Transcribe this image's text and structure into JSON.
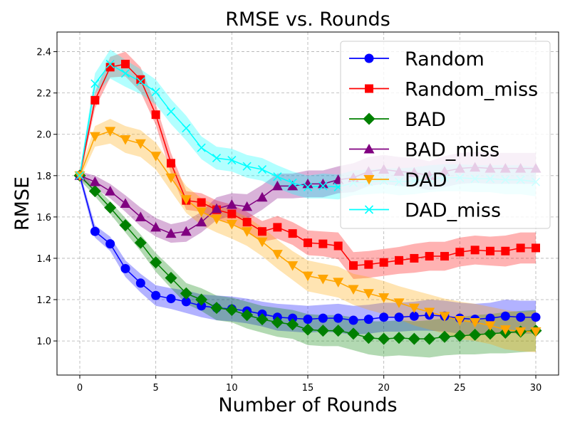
{
  "chart_data": {
    "type": "line",
    "title": "RMSE vs. Rounds",
    "xlabel": "Number of Rounds",
    "ylabel": "RMSE",
    "xlim": [
      -1.5,
      31.5
    ],
    "ylim": [
      0.835,
      2.495
    ],
    "x_ticks": [
      0,
      5,
      10,
      15,
      20,
      25,
      30
    ],
    "y_ticks": [
      1.0,
      1.2,
      1.4,
      1.6,
      1.8,
      2.0,
      2.2,
      2.4
    ],
    "grid": true,
    "legend_position": "top-right",
    "x": [
      0,
      1,
      2,
      3,
      4,
      5,
      6,
      7,
      8,
      9,
      10,
      11,
      12,
      13,
      14,
      15,
      16,
      17,
      18,
      19,
      20,
      21,
      22,
      23,
      24,
      25,
      26,
      27,
      28,
      29,
      30
    ],
    "series": [
      {
        "name": "Random",
        "color": "#0000ff",
        "marker": "circle",
        "values": [
          1.8,
          1.53,
          1.47,
          1.35,
          1.28,
          1.22,
          1.205,
          1.19,
          1.17,
          1.16,
          1.155,
          1.145,
          1.13,
          1.115,
          1.11,
          1.105,
          1.11,
          1.11,
          1.1,
          1.105,
          1.115,
          1.115,
          1.12,
          1.125,
          1.12,
          1.11,
          1.105,
          1.11,
          1.12,
          1.115,
          1.115
        ],
        "band": [
          0.02,
          0.03,
          0.035,
          0.04,
          0.045,
          0.05,
          0.05,
          0.055,
          0.055,
          0.06,
          0.06,
          0.06,
          0.06,
          0.065,
          0.065,
          0.065,
          0.065,
          0.07,
          0.07,
          0.07,
          0.07,
          0.07,
          0.07,
          0.075,
          0.075,
          0.075,
          0.075,
          0.075,
          0.08,
          0.08,
          0.08
        ]
      },
      {
        "name": "Random_miss",
        "color": "#ff0000",
        "marker": "square",
        "values": [
          1.8,
          2.165,
          2.325,
          2.34,
          2.265,
          2.095,
          1.86,
          1.68,
          1.67,
          1.635,
          1.615,
          1.575,
          1.53,
          1.55,
          1.52,
          1.475,
          1.47,
          1.46,
          1.365,
          1.37,
          1.38,
          1.39,
          1.4,
          1.41,
          1.41,
          1.43,
          1.44,
          1.435,
          1.435,
          1.45,
          1.45
        ],
        "band": [
          0.02,
          0.04,
          0.05,
          0.06,
          0.06,
          0.05,
          0.05,
          0.045,
          0.045,
          0.045,
          0.045,
          0.05,
          0.05,
          0.055,
          0.055,
          0.06,
          0.06,
          0.065,
          0.065,
          0.065,
          0.065,
          0.065,
          0.07,
          0.07,
          0.07,
          0.07,
          0.07,
          0.07,
          0.075,
          0.075,
          0.075
        ]
      },
      {
        "name": "BAD",
        "color": "#008000",
        "marker": "diamond",
        "values": [
          1.8,
          1.725,
          1.645,
          1.56,
          1.475,
          1.38,
          1.305,
          1.23,
          1.2,
          1.16,
          1.15,
          1.125,
          1.105,
          1.09,
          1.08,
          1.055,
          1.05,
          1.05,
          1.035,
          1.015,
          1.01,
          1.015,
          1.01,
          1.01,
          1.02,
          1.025,
          1.03,
          1.035,
          1.04,
          1.045,
          1.05
        ],
        "band": [
          0.02,
          0.025,
          0.03,
          0.035,
          0.04,
          0.045,
          0.05,
          0.05,
          0.055,
          0.06,
          0.06,
          0.065,
          0.065,
          0.07,
          0.07,
          0.075,
          0.075,
          0.075,
          0.08,
          0.08,
          0.085,
          0.085,
          0.085,
          0.09,
          0.09,
          0.09,
          0.095,
          0.095,
          0.1,
          0.1,
          0.1
        ]
      },
      {
        "name": "BAD_miss",
        "color": "#800080",
        "marker": "triangle-up",
        "values": [
          1.8,
          1.77,
          1.725,
          1.665,
          1.6,
          1.55,
          1.52,
          1.53,
          1.575,
          1.64,
          1.66,
          1.65,
          1.695,
          1.75,
          1.75,
          1.76,
          1.76,
          1.78,
          1.79,
          1.82,
          1.83,
          1.82,
          1.815,
          1.8,
          1.82,
          1.835,
          1.84,
          1.835,
          1.835,
          1.835,
          1.835
        ],
        "band": [
          0.02,
          0.03,
          0.035,
          0.04,
          0.045,
          0.045,
          0.045,
          0.05,
          0.05,
          0.055,
          0.055,
          0.06,
          0.06,
          0.06,
          0.06,
          0.065,
          0.065,
          0.065,
          0.07,
          0.07,
          0.07,
          0.07,
          0.07,
          0.07,
          0.075,
          0.075,
          0.075,
          0.075,
          0.075,
          0.075,
          0.075
        ]
      },
      {
        "name": "DAD",
        "color": "#ffa500",
        "marker": "triangle-down",
        "values": [
          1.8,
          1.99,
          2.015,
          1.975,
          1.955,
          1.895,
          1.79,
          1.685,
          1.625,
          1.59,
          1.565,
          1.53,
          1.48,
          1.42,
          1.365,
          1.315,
          1.3,
          1.285,
          1.25,
          1.23,
          1.21,
          1.185,
          1.16,
          1.14,
          1.12,
          1.1,
          1.09,
          1.075,
          1.055,
          1.045,
          1.045
        ],
        "band": [
          0.02,
          0.05,
          0.06,
          0.065,
          0.065,
          0.065,
          0.065,
          0.065,
          0.065,
          0.065,
          0.07,
          0.07,
          0.07,
          0.07,
          0.07,
          0.075,
          0.075,
          0.075,
          0.075,
          0.08,
          0.08,
          0.08,
          0.085,
          0.085,
          0.085,
          0.09,
          0.09,
          0.09,
          0.095,
          0.095,
          0.1
        ]
      },
      {
        "name": "DAD_miss",
        "color": "#00ffff",
        "marker": "x",
        "values": [
          1.8,
          2.245,
          2.34,
          2.295,
          2.255,
          2.205,
          2.11,
          2.03,
          1.935,
          1.885,
          1.875,
          1.845,
          1.83,
          1.795,
          1.765,
          1.745,
          1.75,
          1.745,
          1.765,
          1.77,
          1.775,
          1.77,
          1.775,
          1.785,
          1.79,
          1.79,
          1.785,
          1.785,
          1.78,
          1.78,
          1.77
        ],
        "band": [
          0.02,
          0.05,
          0.07,
          0.065,
          0.06,
          0.06,
          0.06,
          0.06,
          0.055,
          0.055,
          0.055,
          0.055,
          0.055,
          0.055,
          0.055,
          0.055,
          0.06,
          0.06,
          0.06,
          0.06,
          0.06,
          0.065,
          0.065,
          0.065,
          0.065,
          0.065,
          0.065,
          0.065,
          0.07,
          0.07,
          0.07
        ]
      }
    ]
  }
}
